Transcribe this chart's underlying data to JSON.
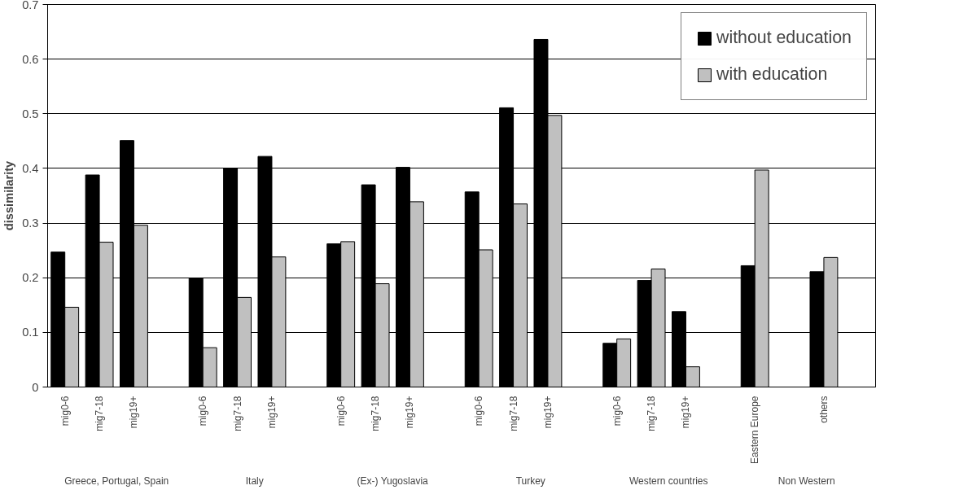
{
  "chart_data": {
    "type": "bar",
    "ylabel": "dissimilarity",
    "categories": [
      "mig0-6",
      "mig7-18",
      "mig19+",
      null,
      "mig0-6",
      "mig7-18",
      "mig19+",
      null,
      "mig0-6",
      "mig7-18",
      "mig19+",
      null,
      "mig0-6",
      "mig7-18",
      "mig19+",
      null,
      "mig0-6",
      "mig7-18",
      "mig19+",
      null,
      "Eastern Europe",
      null,
      "others",
      null
    ],
    "series": [
      {
        "name": "without education",
        "color": "#000000",
        "values": [
          0.247,
          0.388,
          0.451,
          null,
          0.199,
          0.4,
          0.422,
          null,
          0.262,
          0.37,
          0.402,
          null,
          0.357,
          0.511,
          0.636,
          null,
          0.08,
          0.195,
          0.138,
          null,
          0.222,
          null,
          0.211,
          null
        ]
      },
      {
        "name": "with education",
        "color": "#c0c0c0",
        "values": [
          0.146,
          0.265,
          0.296,
          null,
          0.072,
          0.164,
          0.238,
          null,
          0.266,
          0.189,
          0.339,
          null,
          0.251,
          0.335,
          0.497,
          null,
          0.088,
          0.216,
          0.037,
          null,
          0.397,
          null,
          0.237,
          null
        ]
      }
    ],
    "annotations": [
      "Greece, Portugal, Spain",
      "Italy",
      "(Ex-) Yugoslavia",
      "Turkey",
      "Western countries",
      "Non Western"
    ],
    "ylim": [
      0,
      0.7
    ],
    "yticks": [
      0,
      0.1,
      0.2,
      0.3,
      0.4,
      0.5,
      0.6,
      0.7
    ],
    "grid": "y",
    "legend": "top right"
  }
}
